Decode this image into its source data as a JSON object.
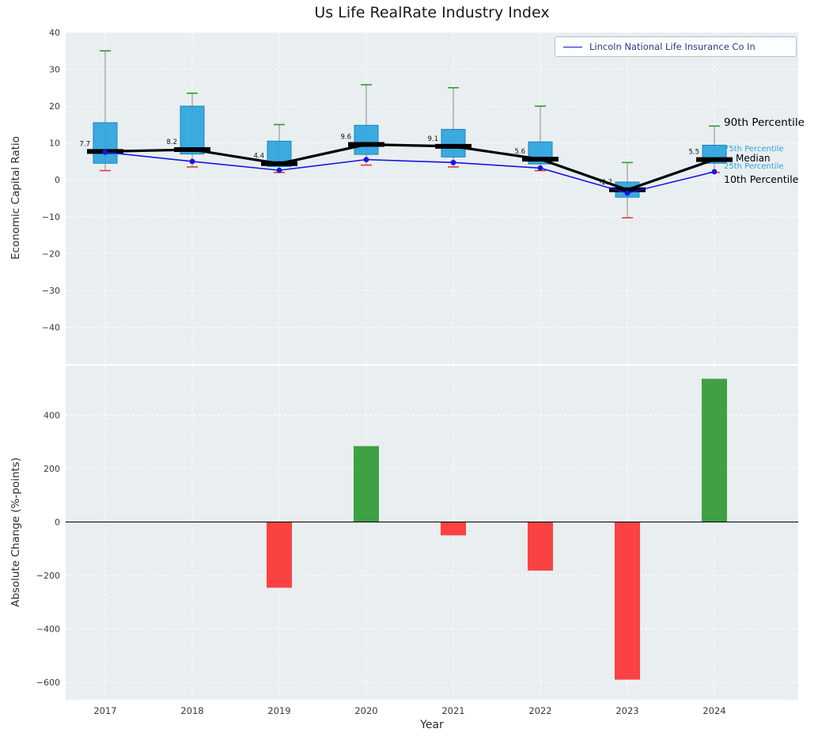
{
  "title": "Us Life RealRate Industry Index",
  "chart_data": [
    {
      "type": "boxplot",
      "title": "Us Life RealRate Industry Index",
      "ylabel": "Economic Capital Ratio",
      "ylim": [
        -50,
        40
      ],
      "yticks": [
        -40,
        -30,
        -20,
        -10,
        0,
        10,
        20,
        30,
        40
      ],
      "grid": true,
      "categories": [
        "2017",
        "2018",
        "2019",
        "2020",
        "2021",
        "2022",
        "2023",
        "2024"
      ],
      "boxes": [
        {
          "year": "2017",
          "whisker_low": 2.5,
          "q1": 4.5,
          "median": 7.7,
          "q3": 15.5,
          "whisker_high": 35.0
        },
        {
          "year": "2018",
          "whisker_low": 3.5,
          "q1": 7.0,
          "median": 8.2,
          "q3": 20.0,
          "whisker_high": 23.5
        },
        {
          "year": "2019",
          "whisker_low": 2.0,
          "q1": 3.6,
          "median": 4.4,
          "q3": 10.5,
          "whisker_high": 15.0
        },
        {
          "year": "2020",
          "whisker_low": 4.0,
          "q1": 6.9,
          "median": 9.6,
          "q3": 14.8,
          "whisker_high": 25.8
        },
        {
          "year": "2021",
          "whisker_low": 3.5,
          "q1": 6.2,
          "median": 9.1,
          "q3": 13.7,
          "whisker_high": 25.0
        },
        {
          "year": "2022",
          "whisker_low": 2.5,
          "q1": 4.3,
          "median": 5.6,
          "q3": 10.3,
          "whisker_high": 20.0
        },
        {
          "year": "2023",
          "whisker_low": -10.3,
          "q1": -4.7,
          "median": -2.7,
          "q3": -0.6,
          "whisker_high": 4.7
        },
        {
          "year": "2024",
          "whisker_low": 2.0,
          "q1": 4.5,
          "median": 5.5,
          "q3": 9.4,
          "whisker_high": 14.6
        }
      ],
      "median_labels": [
        "7.7",
        "8.2",
        "4.4",
        "9.6",
        "9.1",
        "5.6",
        "-2.7",
        "5.5"
      ],
      "series": [
        {
          "name": "Lincoln National Life Insurance Co In",
          "color": "#1616e0",
          "values": [
            7.5,
            5.0,
            2.6,
            5.5,
            4.7,
            3.2,
            -3.6,
            2.2
          ]
        }
      ],
      "legend": {
        "label": "Lincoln National Life Insurance Co In",
        "position": "upper right"
      },
      "annotations": {
        "p90": "90th Percentile",
        "p75": "75th Percentile",
        "median": "Median",
        "p25": "25th Percentile",
        "p10": "10th Percentile"
      },
      "colors": {
        "panel_bg": "#e9eef1",
        "grid": "#ffffff",
        "box_fill": "#31a5dc",
        "box_edge": "#1787bd",
        "whisker": "#9a9a9a",
        "cap_top": "#2e9e2e",
        "cap_bottom": "#e23b3b",
        "median_line": "#000000"
      }
    },
    {
      "type": "bar",
      "ylabel": "Absolute Change (%-points)",
      "xlabel": "Year",
      "ylim": [
        -665,
        585
      ],
      "yticks": [
        -600,
        -400,
        -200,
        0,
        200,
        400
      ],
      "grid": true,
      "categories": [
        "2017",
        "2018",
        "2019",
        "2020",
        "2021",
        "2022",
        "2023",
        "2024"
      ],
      "values": [
        null,
        null,
        -246,
        284,
        -50,
        -182,
        -590,
        536
      ],
      "colors": {
        "panel_bg": "#e9eef1",
        "grid": "#ffffff",
        "positive": "#3fa143",
        "negative": "#fb4242",
        "zero_line": "#000000"
      }
    }
  ]
}
